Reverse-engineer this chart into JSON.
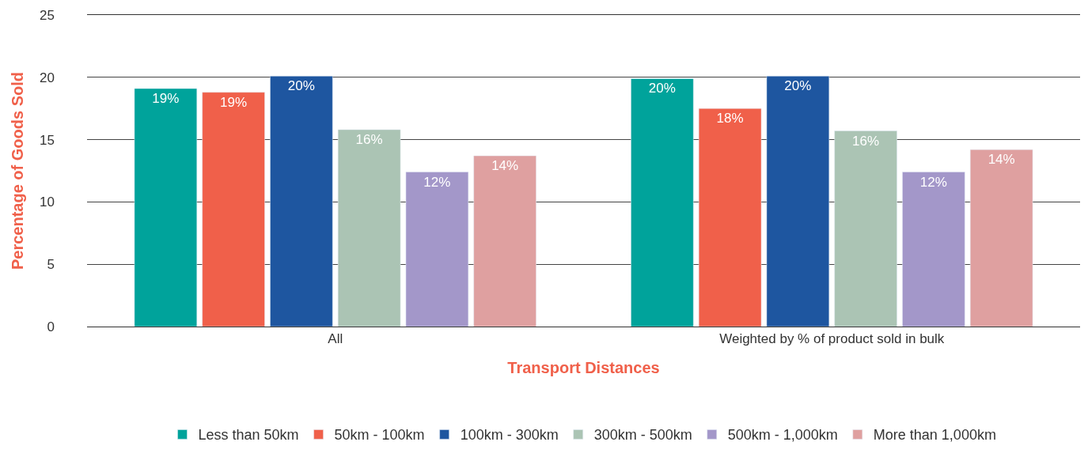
{
  "chart_data": {
    "type": "bar",
    "xlabel": "Transport Distances",
    "ylabel": "Percentage of Goods Sold",
    "categories": [
      "All",
      "Weighted by % of product sold in bulk"
    ],
    "series": [
      {
        "name": "Less than 50km",
        "color": "#00a39b",
        "values": [
          19.1,
          19.9
        ],
        "value_labels": [
          "19%",
          "20%"
        ]
      },
      {
        "name": "50km - 100km",
        "color": "#f0604a",
        "values": [
          18.8,
          17.5
        ],
        "value_labels": [
          "19%",
          "18%"
        ]
      },
      {
        "name": "100km - 300km",
        "color": "#1e56a0",
        "values": [
          20.1,
          20.1
        ],
        "value_labels": [
          "20%",
          "20%"
        ]
      },
      {
        "name": "300km - 500km",
        "color": "#abc4b4",
        "values": [
          15.8,
          15.7
        ],
        "value_labels": [
          "16%",
          "16%"
        ]
      },
      {
        "name": "500km - 1,000km",
        "color": "#a397c9",
        "values": [
          12.4,
          12.4
        ],
        "value_labels": [
          "12%",
          "12%"
        ]
      },
      {
        "name": "More than 1,000km",
        "color": "#dfa0a0",
        "values": [
          13.7,
          14.2
        ],
        "value_labels": [
          "14%",
          "14%"
        ]
      }
    ],
    "ylim": [
      0,
      25
    ],
    "yticks": [
      0,
      5,
      10,
      15,
      20,
      25
    ],
    "grid": "y",
    "legend": "bottom"
  }
}
